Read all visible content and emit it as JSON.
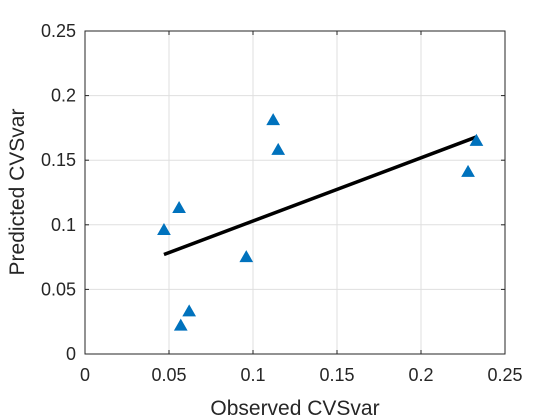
{
  "chart_data": {
    "type": "scatter",
    "title": "",
    "xlabel": "Observed CVSvar",
    "ylabel": "Predicted CVSvar",
    "xlim": [
      0,
      0.25
    ],
    "ylim": [
      0,
      0.25
    ],
    "xticks": [
      0,
      0.05,
      0.1,
      0.15,
      0.2,
      0.25
    ],
    "yticks": [
      0,
      0.05,
      0.1,
      0.15,
      0.2,
      0.25
    ],
    "xtick_labels": [
      "0",
      "0.05",
      "0.1",
      "0.15",
      "0.2",
      "0.25"
    ],
    "ytick_labels": [
      "0",
      "0.05",
      "0.1",
      "0.15",
      "0.2",
      "0.25"
    ],
    "grid": true,
    "series": [
      {
        "marker": "triangle",
        "color": "#0072BD",
        "x": [
          0.047,
          0.056,
          0.057,
          0.062,
          0.096,
          0.112,
          0.115,
          0.228,
          0.233
        ],
        "y": [
          0.096,
          0.113,
          0.022,
          0.033,
          0.075,
          0.181,
          0.158,
          0.141,
          0.165
        ]
      }
    ],
    "fit_line": {
      "color": "#000000",
      "x": [
        0.047,
        0.233
      ],
      "y": [
        0.077,
        0.168
      ]
    }
  }
}
